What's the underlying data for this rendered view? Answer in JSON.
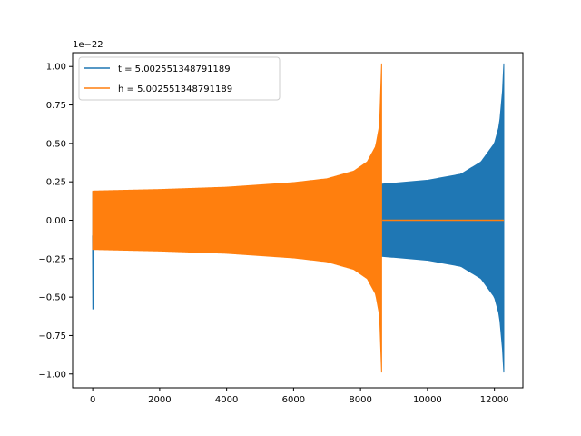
{
  "chart_data": {
    "type": "line",
    "axis_offset_label": "1e−22",
    "xlim": [
      -600,
      12850
    ],
    "ylim": [
      -1.09,
      1.09
    ],
    "x_ticks": [
      0,
      2000,
      4000,
      6000,
      8000,
      10000,
      12000
    ],
    "y_ticks": [
      -1.0,
      -0.75,
      -0.5,
      -0.25,
      0.0,
      0.25,
      0.5,
      0.75,
      1.0
    ],
    "grid": false,
    "legend_position": "top-left",
    "series": [
      {
        "name": "t = 5.002551348791189",
        "color": "#1f77b4",
        "x_range": [
          0,
          12280
        ],
        "envelope_upper": [
          [
            0,
            0.185
          ],
          [
            2000,
            0.195
          ],
          [
            4000,
            0.205
          ],
          [
            6000,
            0.215
          ],
          [
            8000,
            0.225
          ],
          [
            8650,
            0.235
          ],
          [
            10000,
            0.26
          ],
          [
            11000,
            0.3
          ],
          [
            11600,
            0.38
          ],
          [
            12000,
            0.5
          ],
          [
            12150,
            0.62
          ],
          [
            12250,
            0.86
          ],
          [
            12280,
            1.02
          ]
        ],
        "envelope_lower": [
          [
            0,
            -0.185
          ],
          [
            2000,
            -0.195
          ],
          [
            4000,
            -0.205
          ],
          [
            6000,
            -0.215
          ],
          [
            8000,
            -0.225
          ],
          [
            8650,
            -0.235
          ],
          [
            10000,
            -0.26
          ],
          [
            11000,
            -0.3
          ],
          [
            11600,
            -0.38
          ],
          [
            12000,
            -0.5
          ],
          [
            12150,
            -0.62
          ],
          [
            12250,
            -0.86
          ],
          [
            12280,
            -0.99
          ]
        ],
        "initial_spike": [
          [
            0,
            -0.1
          ],
          [
            10,
            -0.58
          ],
          [
            20,
            0.19
          ],
          [
            40,
            -0.18
          ]
        ]
      },
      {
        "name": "h = 5.002551348791189",
        "color": "#ff7f0e",
        "x_range": [
          0,
          12280
        ],
        "envelope_upper": [
          [
            0,
            0.19
          ],
          [
            2000,
            0.2
          ],
          [
            4000,
            0.215
          ],
          [
            6000,
            0.245
          ],
          [
            7000,
            0.27
          ],
          [
            7800,
            0.32
          ],
          [
            8200,
            0.38
          ],
          [
            8450,
            0.48
          ],
          [
            8570,
            0.62
          ],
          [
            8630,
            1.02
          ]
        ],
        "envelope_lower": [
          [
            0,
            -0.19
          ],
          [
            2000,
            -0.2
          ],
          [
            4000,
            -0.215
          ],
          [
            6000,
            -0.245
          ],
          [
            7000,
            -0.27
          ],
          [
            7800,
            -0.32
          ],
          [
            8200,
            -0.38
          ],
          [
            8450,
            -0.48
          ],
          [
            8570,
            -0.62
          ],
          [
            8630,
            -0.99
          ]
        ],
        "zero_after": 8650
      }
    ]
  }
}
